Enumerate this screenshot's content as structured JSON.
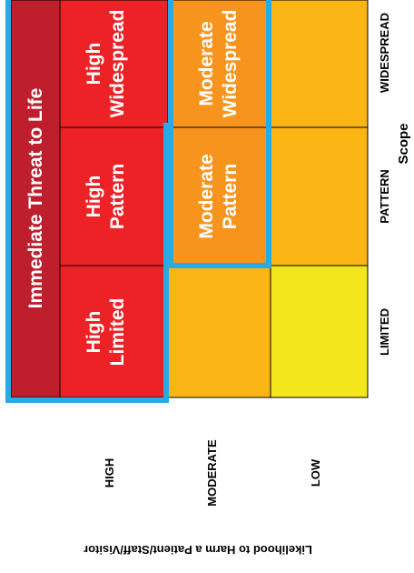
{
  "title_banner": "Immediate Threat to Life",
  "y_axis_title": "Likelihood to Harm a Patient/Staff/Visitor",
  "x_axis_title": "Scope",
  "likelihood_levels": [
    "HIGH",
    "MODERATE",
    "LOW"
  ],
  "scope_levels": [
    "LIMITED",
    "PATTERN",
    "WIDESPREAD"
  ],
  "cells": {
    "high_limited": [
      "High",
      "Limited"
    ],
    "high_pattern": [
      "High",
      "Pattern"
    ],
    "high_widespread": [
      "High",
      "Widespread"
    ],
    "moderate_pattern": [
      "Moderate",
      "Pattern"
    ],
    "moderate_widespread": [
      "Moderate",
      "Widespread"
    ]
  },
  "colors": {
    "red": "#ec2227",
    "dark_red": "#bf1e2d",
    "orange": "#f7941d",
    "amber": "#fbb615",
    "yellow": "#f3e61a",
    "highlight_border": "#29abe2"
  }
}
